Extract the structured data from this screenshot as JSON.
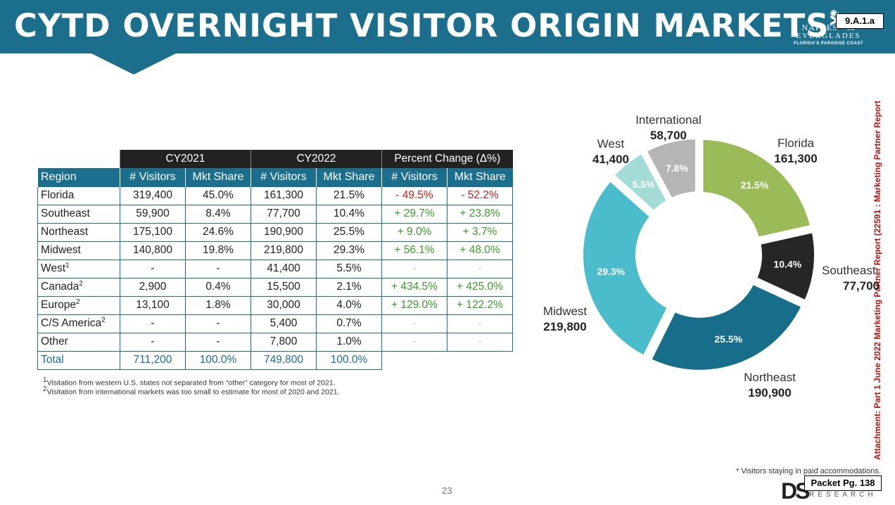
{
  "header": {
    "title": "CYTD OVERNIGHT VISITOR ORIGIN MARKETS*",
    "logo_line1": "NAPLES · M",
    "logo_line2": "EVERGLADES",
    "logo_line3": "FLORIDA'S PARADISE COAST",
    "tag": "9.A.1.a"
  },
  "side_text": "Attachment: Part 1 June 2022 Marketing Partner Report  (22591 : Marketing Partner Report",
  "table": {
    "groups": [
      "CY2021",
      "CY2022",
      "Percent Change (Δ%)"
    ],
    "columns": [
      "Region",
      "# Visitors",
      "Mkt Share",
      "# Visitors",
      "Mkt Share",
      "# Visitors",
      "Mkt Share"
    ],
    "rows": [
      {
        "region": "Florida",
        "sup": "",
        "v21": "319,400",
        "s21": "45.0%",
        "v22": "161,300",
        "s22": "21.5%",
        "dv": "- 49.5%",
        "ds": "- 52.2%"
      },
      {
        "region": "Southeast",
        "sup": "",
        "v21": "59,900",
        "s21": "8.4%",
        "v22": "77,700",
        "s22": "10.4%",
        "dv": "+ 29.7%",
        "ds": "+ 23.8%"
      },
      {
        "region": "Northeast",
        "sup": "",
        "v21": "175,100",
        "s21": "24.6%",
        "v22": "190,900",
        "s22": "25.5%",
        "dv": "+ 9.0%",
        "ds": "+ 3.7%"
      },
      {
        "region": "Midwest",
        "sup": "",
        "v21": "140,800",
        "s21": "19.8%",
        "v22": "219,800",
        "s22": "29.3%",
        "dv": "+ 56.1%",
        "ds": "+ 48.0%"
      },
      {
        "region": "West",
        "sup": "1",
        "v21": "-",
        "s21": "-",
        "v22": "41,400",
        "s22": "5.5%",
        "dv": "-",
        "ds": "-"
      },
      {
        "region": "Canada",
        "sup": "2",
        "v21": "2,900",
        "s21": "0.4%",
        "v22": "15,500",
        "s22": "2.1%",
        "dv": "+ 434.5%",
        "ds": "+ 425.0%"
      },
      {
        "region": "Europe",
        "sup": "2",
        "v21": "13,100",
        "s21": "1.8%",
        "v22": "30,000",
        "s22": "4.0%",
        "dv": "+ 129.0%",
        "ds": "+ 122.2%"
      },
      {
        "region": "C/S America",
        "sup": "2",
        "v21": "-",
        "s21": "-",
        "v22": "5,400",
        "s22": "0.7%",
        "dv": "-",
        "ds": "-"
      },
      {
        "region": "Other",
        "sup": "",
        "v21": "-",
        "s21": "-",
        "v22": "7,800",
        "s22": "1.0%",
        "dv": "-",
        "ds": "-"
      }
    ],
    "total": {
      "region": "Total",
      "v21": "711,200",
      "s21": "100.0%",
      "v22": "749,800",
      "s22": "100.0%"
    }
  },
  "footnotes": [
    "Visitation from western U.S. states not separated from “other” category for most of 2021.",
    "Visitation from international markets was too small to estimate for most of 2020 and 2021."
  ],
  "footnote_marks": [
    "1",
    "2"
  ],
  "note": "* Visitors staying in paid accommodations.",
  "page_number": "23",
  "packet": "Packet Pg. 138",
  "footer_logo": "DS",
  "footer_research": "RESEARCH",
  "chart_data": {
    "type": "pie",
    "donut": true,
    "slices": [
      {
        "name": "Florida",
        "value": 161300,
        "label": "21.5%",
        "display": "161,300",
        "color": "#9bbb59"
      },
      {
        "name": "Southeast",
        "value": 77700,
        "label": "10.4%",
        "display": "77,700",
        "color": "#262626"
      },
      {
        "name": "Northeast",
        "value": 190900,
        "label": "25.5%",
        "display": "190,900",
        "color": "#176e8a"
      },
      {
        "name": "Midwest",
        "value": 219800,
        "label": "29.3%",
        "display": "219,800",
        "color": "#4bbccc"
      },
      {
        "name": "West",
        "value": 41400,
        "label": "5.5%",
        "display": "41,400",
        "color": "#a3dcd6"
      },
      {
        "name": "International",
        "value": 58700,
        "label": "7.8%",
        "display": "58,700",
        "color": "#b5b5b5"
      }
    ]
  }
}
